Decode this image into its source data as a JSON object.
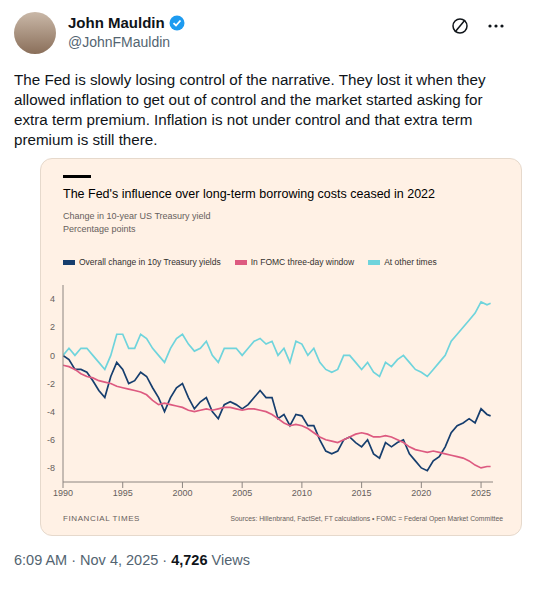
{
  "tweet": {
    "name": "John Mauldin",
    "handle": "@JohnFMauldin",
    "text": "The Fed is slowly losing control of the narrative. They lost it when they allowed inflation to get out of control and the market started asking for extra term premium. Inflation is not under control and that extra term premium is still there.",
    "timestamp": "6:09 AM · Nov 4, 2025 ·",
    "views": "4,726",
    "views_label": "Views"
  },
  "chart_data": {
    "type": "line",
    "title": "The Fed's influence over long-term borrowing costs ceased in 2022",
    "subtitle": [
      "Change in 10-year US Treasury yield",
      "Percentage points"
    ],
    "source_brand": "FINANCIAL TIMES",
    "source": "Sources: Hillenbrand, FactSet, FT calculations • FOMC = Federal Open Market Committee",
    "legend": "top-left",
    "grid": false,
    "x": [
      1990,
      1990.5,
      1991,
      1991.5,
      1992,
      1992.5,
      1993,
      1993.5,
      1994,
      1994.5,
      1995,
      1995.5,
      1996,
      1996.5,
      1997,
      1997.5,
      1998,
      1998.5,
      1999,
      1999.5,
      2000,
      2000.5,
      2001,
      2001.5,
      2002,
      2002.5,
      2003,
      2003.5,
      2004,
      2004.5,
      2005,
      2005.5,
      2006,
      2006.5,
      2007,
      2007.5,
      2008,
      2008.5,
      2009,
      2009.5,
      2010,
      2010.5,
      2011,
      2011.5,
      2012,
      2012.5,
      2013,
      2013.5,
      2014,
      2014.5,
      2015,
      2015.5,
      2016,
      2016.5,
      2017,
      2017.5,
      2018,
      2018.5,
      2019,
      2019.5,
      2020,
      2020.5,
      2021,
      2021.5,
      2022,
      2022.5,
      2023,
      2023.5,
      2024,
      2024.5,
      2025,
      2025.5,
      2025.8
    ],
    "xlim": [
      1990,
      2026
    ],
    "xticks": [
      1990,
      1995,
      2000,
      2005,
      2010,
      2015,
      2020,
      2025
    ],
    "ylim": [
      -9,
      5
    ],
    "yticks": [
      -8,
      -6,
      -4,
      -2,
      0,
      2,
      4
    ],
    "series": [
      {
        "name": "Overall change in 10y Treasury yields",
        "color": "#163e6e",
        "values": [
          0,
          -0.3,
          -1,
          -1,
          -1.2,
          -1.8,
          -2.5,
          -3,
          -1.5,
          -0.5,
          -1,
          -2,
          -1.8,
          -1.2,
          -1.5,
          -2.3,
          -3,
          -4,
          -3,
          -2.3,
          -2,
          -3,
          -3.8,
          -3.3,
          -3,
          -4,
          -4.5,
          -3.5,
          -3.3,
          -3.5,
          -3.8,
          -3.5,
          -3,
          -2.5,
          -3,
          -3,
          -4.5,
          -4.2,
          -5,
          -4.2,
          -4.3,
          -5,
          -5,
          -6,
          -6.8,
          -7,
          -6.8,
          -6,
          -5.8,
          -6.2,
          -6.5,
          -6,
          -7,
          -7.3,
          -6.2,
          -6.5,
          -6.2,
          -6,
          -7,
          -7.5,
          -8,
          -8.2,
          -7.5,
          -7.2,
          -6.5,
          -5.5,
          -5,
          -4.8,
          -4.5,
          -4.8,
          -3.8,
          -4.2,
          -4.3
        ]
      },
      {
        "name": "In FOMC three-day window",
        "color": "#dd5a80",
        "values": [
          -0.7,
          -0.8,
          -1,
          -1.3,
          -1.5,
          -1.6,
          -1.8,
          -1.9,
          -2,
          -2.2,
          -2.3,
          -2.4,
          -2.5,
          -2.6,
          -2.8,
          -3.2,
          -3.5,
          -3.4,
          -3.5,
          -3.6,
          -3.7,
          -3.9,
          -4,
          -3.9,
          -3.8,
          -3.9,
          -3.8,
          -3.7,
          -3.7,
          -3.8,
          -3.9,
          -3.8,
          -3.8,
          -3.9,
          -4,
          -4.2,
          -4.5,
          -4.8,
          -5,
          -4.9,
          -5,
          -5.2,
          -5.5,
          -5.8,
          -6,
          -6.1,
          -6.2,
          -6,
          -5.8,
          -5.6,
          -5.5,
          -5.6,
          -5.8,
          -5.8,
          -5.7,
          -5.8,
          -6,
          -6.2,
          -6.5,
          -6.7,
          -6.8,
          -6.9,
          -6.8,
          -6.9,
          -7,
          -7.1,
          -7.2,
          -7.3,
          -7.5,
          -7.8,
          -8,
          -7.9,
          -7.9
        ]
      },
      {
        "name": "At other times",
        "color": "#6fd4dc",
        "values": [
          0,
          0.5,
          0,
          0.5,
          0.5,
          0,
          -0.5,
          -1,
          0,
          1.5,
          1.5,
          0.5,
          0.5,
          1.5,
          1.2,
          0.5,
          0,
          -0.5,
          0.5,
          1.2,
          1.5,
          0.8,
          0.3,
          0.5,
          1,
          0,
          -0.5,
          0.5,
          0.5,
          0.5,
          0,
          0.5,
          1,
          1.2,
          0.8,
          1,
          0,
          0.5,
          -0.5,
          1,
          0.8,
          0,
          0.5,
          -0.5,
          -1,
          -1.2,
          -1,
          0,
          0,
          -0.5,
          -1,
          -0.5,
          -1.2,
          -1.5,
          -0.5,
          -0.8,
          -0.3,
          0,
          -0.5,
          -1,
          -1.2,
          -1.5,
          -1,
          -0.5,
          0,
          1,
          1.5,
          2,
          2.5,
          3,
          3.8,
          3.6,
          3.7
        ]
      }
    ]
  }
}
